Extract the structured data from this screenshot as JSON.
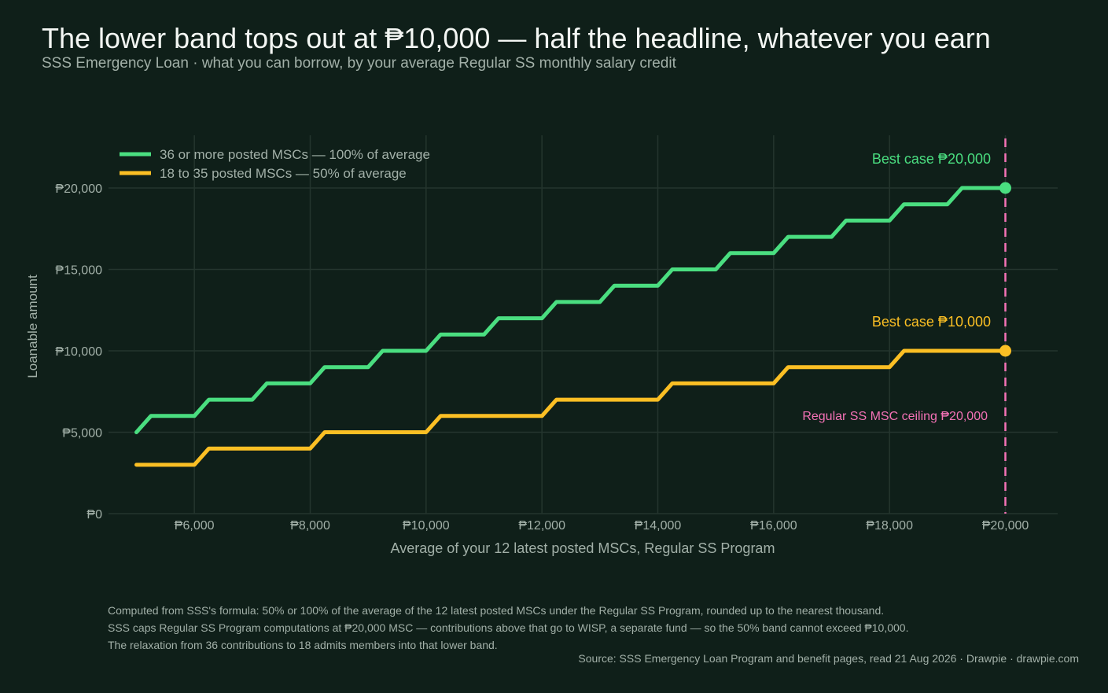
{
  "title": "The lower band tops out at ₱10,000 — half the headline, whatever you earn",
  "subtitle": "SSS Emergency Loan · what you can borrow, by your average Regular SS monthly salary credit",
  "notes": [
    "Computed from SSS's formula: 50% or 100% of the average of the 12 latest posted MSCs under the Regular SS Program, rounded up to the nearest thousand.",
    "SSS caps Regular SS Program computations at ₱20,000 MSC — contributions above that go to WISP, a separate fund — so the 50% band cannot exceed ₱10,000.",
    "The relaxation from 36 contributions to 18 admits members into that lower band."
  ],
  "source": "Source: SSS Emergency Loan Program and benefit pages, read 21 Aug 2026  ·  Drawpie · drawpie.com",
  "chart_data": {
    "type": "line",
    "step": "rounded-up-to-nearest-1000",
    "xlabel": "Average of your 12 latest posted MSCs, Regular SS Program",
    "ylabel": "Loanable amount",
    "xlim": [
      5000,
      20000
    ],
    "ylim": [
      0,
      22000
    ],
    "x_ticks": [
      6000,
      8000,
      10000,
      12000,
      14000,
      16000,
      18000,
      20000
    ],
    "x_tick_labels": [
      "₱6,000",
      "₱8,000",
      "₱10,000",
      "₱12,000",
      "₱14,000",
      "₱16,000",
      "₱18,000",
      "₱20,000"
    ],
    "y_ticks": [
      0,
      5000,
      10000,
      15000,
      20000
    ],
    "y_tick_labels": [
      "₱0",
      "₱5,000",
      "₱10,000",
      "₱15,000",
      "₱20,000"
    ],
    "grid": true,
    "legend_position": "top-left",
    "series": [
      {
        "name": "36 or more posted MSCs — 100% of average",
        "color": "#4ade80",
        "share": 1.0,
        "end_value": 20000,
        "end_label": "Best case ₱20,000"
      },
      {
        "name": "18 to 35 posted MSCs — 50% of average",
        "color": "#fbbf24",
        "share": 0.5,
        "end_value": 10000,
        "end_label": "Best case ₱10,000"
      }
    ],
    "reference_line": {
      "x": 20000,
      "label": "Regular SS MSC ceiling ₱20,000",
      "color": "#f472b6",
      "style": "dashed"
    },
    "colors": {
      "background": "#0f1f19",
      "grid": "#24352e",
      "text": "#a2b0a8",
      "title": "#f3f6f3"
    }
  }
}
